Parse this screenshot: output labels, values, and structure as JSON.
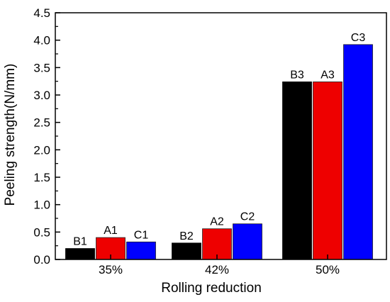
{
  "chart_data": {
    "type": "bar",
    "title": "",
    "xlabel": "Rolling reduction",
    "ylabel": "Peeling strength(N/mm)",
    "ylim": [
      0.0,
      4.5
    ],
    "yticks": [
      0.0,
      0.5,
      1.0,
      1.5,
      2.0,
      2.5,
      3.0,
      3.5,
      4.0,
      4.5
    ],
    "ytick_labels": [
      "0.0",
      "0.5",
      "1.0",
      "1.5",
      "2.0",
      "2.5",
      "3.0",
      "3.5",
      "4.0",
      "4.5"
    ],
    "grid": false,
    "legend": "none",
    "categories": [
      "35%",
      "42%",
      "50%"
    ],
    "series": [
      {
        "color": "#000000",
        "values": [
          0.2,
          0.3,
          3.24
        ],
        "labels": [
          "B1",
          "B2",
          "B3"
        ]
      },
      {
        "color": "#ee0000",
        "values": [
          0.4,
          0.56,
          3.24
        ],
        "labels": [
          "A1",
          "A2",
          "A3"
        ]
      },
      {
        "color": "#0000ff",
        "values": [
          0.32,
          0.65,
          3.92
        ],
        "labels": [
          "C1",
          "C2",
          "C3"
        ]
      }
    ]
  }
}
